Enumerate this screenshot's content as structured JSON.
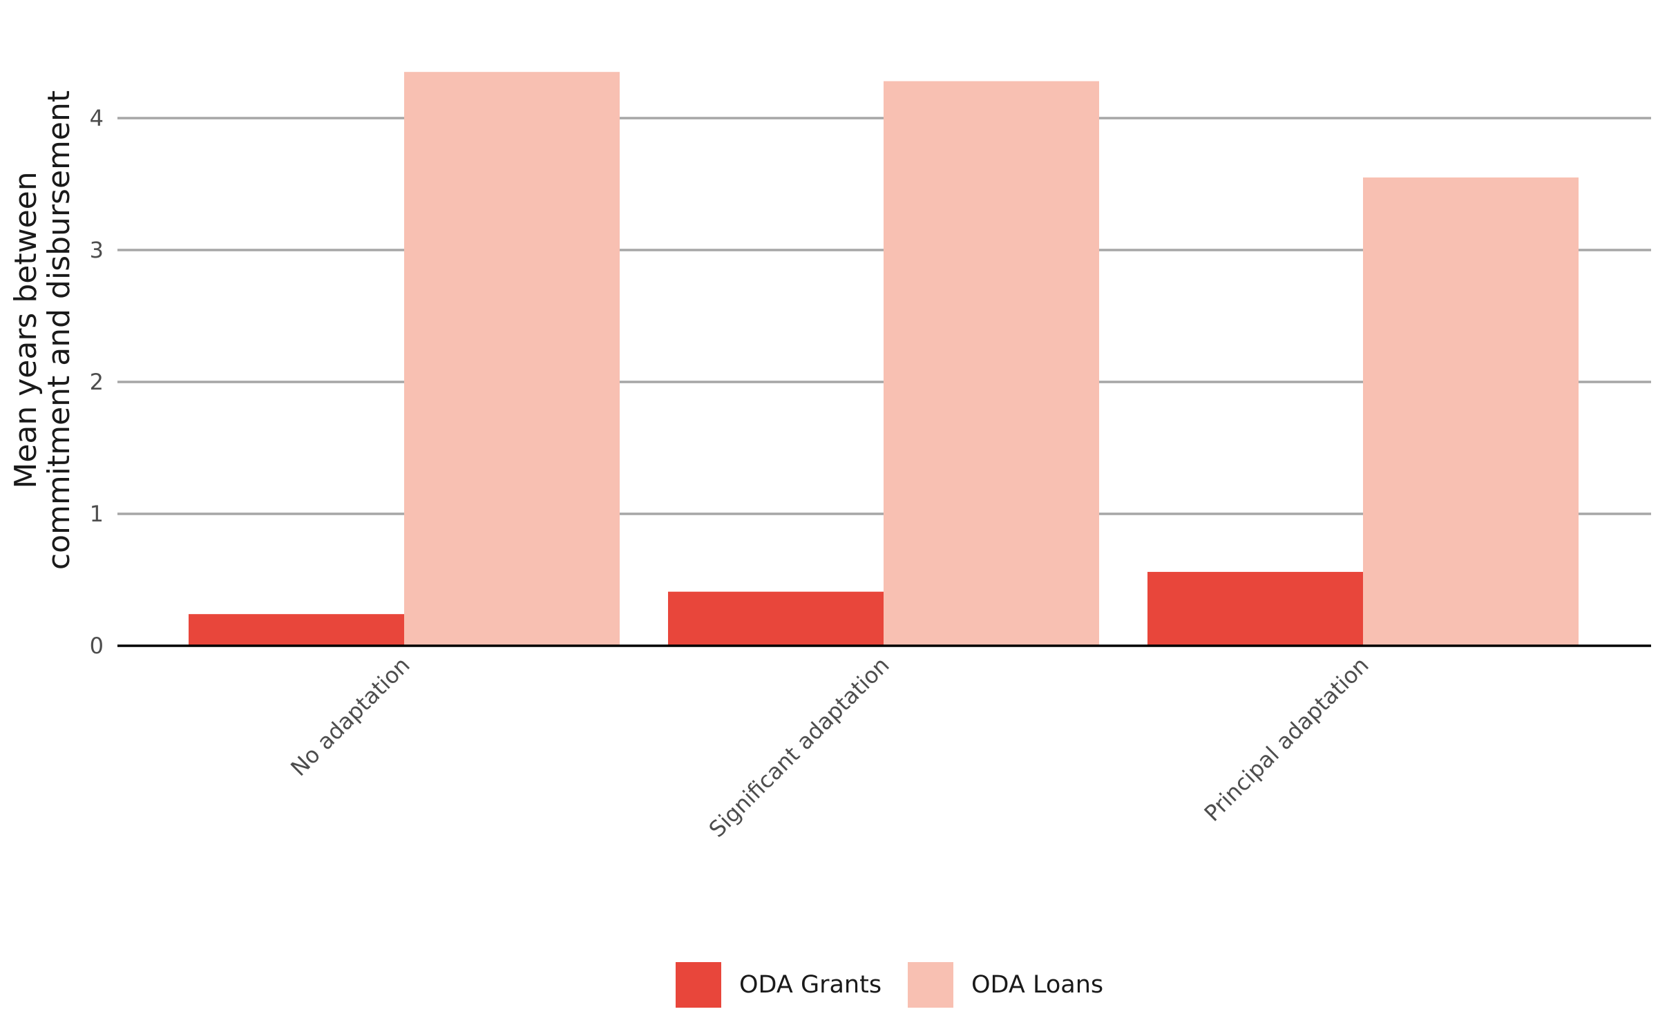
{
  "chart_data": {
    "type": "bar",
    "title": "",
    "xlabel": "",
    "ylabel": "Mean years between\ncommitment and disbursement",
    "categories": [
      "No adaptation",
      "Significant adaptation",
      "Principal adaptation"
    ],
    "series": [
      {
        "name": "ODA Grants",
        "color": "#e8463b",
        "values": [
          0.24,
          0.41,
          0.56
        ]
      },
      {
        "name": "ODA Loans",
        "color": "#f8c0b2",
        "values": [
          4.35,
          4.28,
          3.55
        ]
      }
    ],
    "ylim": [
      0,
      4.5
    ],
    "yticks": [
      0,
      1,
      2,
      3,
      4
    ],
    "grid": "horizontal",
    "legend_position": "bottom"
  }
}
